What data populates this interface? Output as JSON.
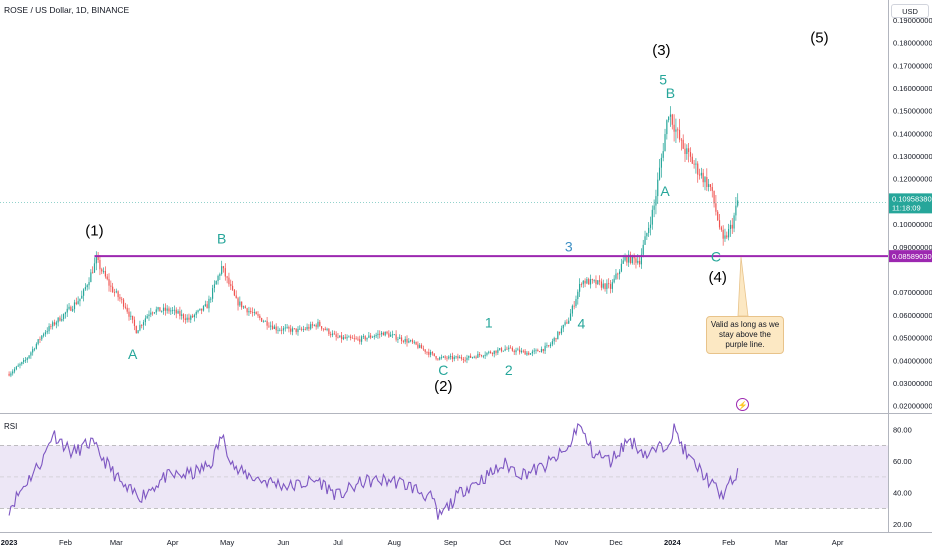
{
  "header": {
    "symbol_title": "ROSE / US Dollar, 1D, BINANCE",
    "currency": "USD"
  },
  "colors": {
    "up": "#26a69a",
    "down": "#ef5350",
    "purple_line": "#9c27b0",
    "rsi_line": "#7e57c2",
    "rsi_band": "#ede7f6",
    "wave_teal": "#26a69a",
    "wave_blue": "#3d8fc4"
  },
  "rsi": {
    "label": "RSI",
    "ticks": [
      "80.00",
      "60.00",
      "40.00",
      "20.00"
    ]
  },
  "annotations": {
    "note": "Valid as long as we stay above the purple line.",
    "lightning_icon": "lightning-icon"
  },
  "chart_data": {
    "type": "candlestick",
    "title": "ROSE / US Dollar, 1D, BINANCE",
    "price_axis_ticks": [
      "0.19000000",
      "0.18000000",
      "0.17000000",
      "0.16000000",
      "0.15000000",
      "0.14000000",
      "0.13000000",
      "0.12000000",
      "0.10000000",
      "0.09000000",
      "0.07000000",
      "0.06000000",
      "0.05000000",
      "0.04000000",
      "0.03000000",
      "0.02000000"
    ],
    "ylim": [
      0.015,
      0.197
    ],
    "x_axis_ticks": [
      "2023",
      "Feb",
      "Mar",
      "Apr",
      "May",
      "Jun",
      "Jul",
      "Aug",
      "Sep",
      "Oct",
      "Nov",
      "Dec",
      "2024",
      "Feb",
      "Mar",
      "Apr"
    ],
    "current_price": "0.10958380",
    "countdown": "11:18:09",
    "support_level": "0.08589030",
    "price_path": [
      [
        "2023-01-01",
        0.034
      ],
      [
        "2023-01-10",
        0.04
      ],
      [
        "2023-01-20",
        0.052
      ],
      [
        "2023-01-31",
        0.06
      ],
      [
        "2023-02-10",
        0.068
      ],
      [
        "2023-02-18",
        0.084
      ],
      [
        "2023-02-26",
        0.072
      ],
      [
        "2023-03-06",
        0.064
      ],
      [
        "2023-03-12",
        0.053
      ],
      [
        "2023-03-20",
        0.062
      ],
      [
        "2023-03-31",
        0.062
      ],
      [
        "2023-04-10",
        0.058
      ],
      [
        "2023-04-20",
        0.064
      ],
      [
        "2023-04-28",
        0.081
      ],
      [
        "2023-05-06",
        0.066
      ],
      [
        "2023-05-16",
        0.06
      ],
      [
        "2023-05-28",
        0.054
      ],
      [
        "2023-06-10",
        0.053
      ],
      [
        "2023-06-20",
        0.056
      ],
      [
        "2023-06-30",
        0.05
      ],
      [
        "2023-07-12",
        0.049
      ],
      [
        "2023-07-26",
        0.052
      ],
      [
        "2023-08-10",
        0.048
      ],
      [
        "2023-08-25",
        0.041
      ],
      [
        "2023-09-10",
        0.041
      ],
      [
        "2023-09-20",
        0.043
      ],
      [
        "2023-10-01",
        0.045
      ],
      [
        "2023-10-15",
        0.043
      ],
      [
        "2023-10-25",
        0.046
      ],
      [
        "2023-11-05",
        0.058
      ],
      [
        "2023-11-12",
        0.075
      ],
      [
        "2023-11-20",
        0.074
      ],
      [
        "2023-11-28",
        0.072
      ],
      [
        "2023-12-06",
        0.085
      ],
      [
        "2023-12-14",
        0.084
      ],
      [
        "2023-12-22",
        0.108
      ],
      [
        "2023-12-30",
        0.15
      ],
      [
        "2024-01-06",
        0.135
      ],
      [
        "2024-01-14",
        0.125
      ],
      [
        "2024-01-22",
        0.116
      ],
      [
        "2024-01-29",
        0.092
      ],
      [
        "2024-02-03",
        0.1
      ],
      [
        "2024-02-06",
        0.11
      ]
    ],
    "rsi_path": [
      [
        "2023-01-01",
        30
      ],
      [
        "2023-01-10",
        46
      ],
      [
        "2023-01-20",
        62
      ],
      [
        "2023-01-25",
        78
      ],
      [
        "2023-02-05",
        65
      ],
      [
        "2023-02-15",
        72
      ],
      [
        "2023-02-26",
        55
      ],
      [
        "2023-03-06",
        42
      ],
      [
        "2023-03-15",
        38
      ],
      [
        "2023-03-28",
        50
      ],
      [
        "2023-04-12",
        52
      ],
      [
        "2023-04-22",
        58
      ],
      [
        "2023-04-28",
        76
      ],
      [
        "2023-05-06",
        54
      ],
      [
        "2023-05-20",
        48
      ],
      [
        "2023-06-05",
        44
      ],
      [
        "2023-06-20",
        48
      ],
      [
        "2023-07-01",
        38
      ],
      [
        "2023-07-15",
        47
      ],
      [
        "2023-07-30",
        48
      ],
      [
        "2023-08-10",
        44
      ],
      [
        "2023-08-22",
        36
      ],
      [
        "2023-08-25",
        24
      ],
      [
        "2023-09-08",
        42
      ],
      [
        "2023-09-20",
        50
      ],
      [
        "2023-10-01",
        58
      ],
      [
        "2023-10-10",
        52
      ],
      [
        "2023-10-22",
        56
      ],
      [
        "2023-11-05",
        68
      ],
      [
        "2023-11-10",
        84
      ],
      [
        "2023-11-18",
        66
      ],
      [
        "2023-11-28",
        60
      ],
      [
        "2023-12-08",
        74
      ],
      [
        "2023-12-18",
        64
      ],
      [
        "2023-12-28",
        70
      ],
      [
        "2024-01-02",
        80
      ],
      [
        "2024-01-10",
        62
      ],
      [
        "2024-01-18",
        52
      ],
      [
        "2024-01-28",
        38
      ],
      [
        "2024-02-06",
        52
      ]
    ],
    "wave_labels": [
      {
        "text": "(1)",
        "date": "2023-02-17",
        "price": 0.095,
        "style": "black"
      },
      {
        "text": "A",
        "date": "2023-03-10",
        "price": 0.0405,
        "style": "teal"
      },
      {
        "text": "B",
        "date": "2023-04-28",
        "price": 0.0915,
        "style": "teal"
      },
      {
        "text": "C",
        "date": "2023-08-28",
        "price": 0.0335,
        "style": "teal"
      },
      {
        "text": "(2)",
        "date": "2023-08-28",
        "price": 0.0265,
        "style": "black"
      },
      {
        "text": "1",
        "date": "2023-09-22",
        "price": 0.0545,
        "style": "teal"
      },
      {
        "text": "2",
        "date": "2023-10-03",
        "price": 0.0335,
        "style": "teal"
      },
      {
        "text": "3",
        "date": "2023-11-05",
        "price": 0.088,
        "style": "blue"
      },
      {
        "text": "4",
        "date": "2023-11-12",
        "price": 0.054,
        "style": "teal"
      },
      {
        "text": "(3)",
        "date": "2023-12-26",
        "price": 0.1745,
        "style": "black"
      },
      {
        "text": "5",
        "date": "2023-12-27",
        "price": 0.1615,
        "style": "teal"
      },
      {
        "text": "B",
        "date": "2023-12-31",
        "price": 0.1555,
        "style": "teal"
      },
      {
        "text": "A",
        "date": "2023-12-28",
        "price": 0.1125,
        "style": "teal"
      },
      {
        "text": "C",
        "date": "2024-01-25",
        "price": 0.0835,
        "style": "teal"
      },
      {
        "text": "(4)",
        "date": "2024-01-26",
        "price": 0.0745,
        "style": "black"
      },
      {
        "text": "(5)",
        "date": "2024-03-22",
        "price": 0.18,
        "style": "black"
      }
    ]
  }
}
